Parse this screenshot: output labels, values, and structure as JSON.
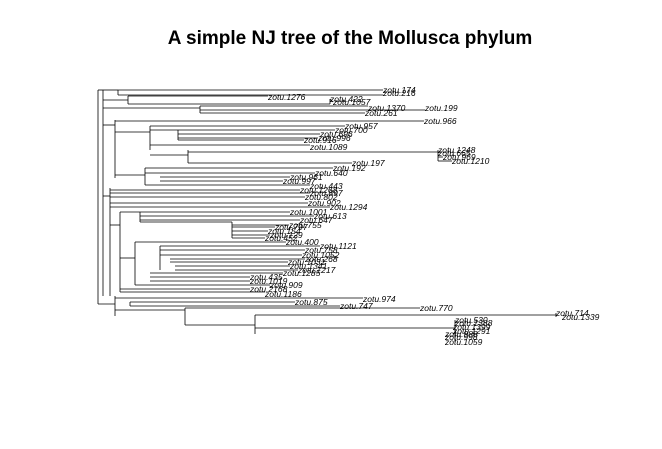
{
  "title": "A simple NJ tree of the Mollusca phylum",
  "tips": [
    "zotu.174",
    "zotu.216",
    "zotu.1276",
    "zotu.422",
    "zotu.1057",
    "zotu.1370",
    "zotu.199",
    "zotu.261",
    "zotu.966",
    "zotu.957",
    "zotu.700",
    "zotu.696",
    "zotu.996",
    "zotu.916",
    "zotu.1089",
    "zotu.1248",
    "zotu.665",
    "zotu.969",
    "zotu.1210",
    "zotu.197",
    "zotu.192",
    "zotu.640",
    "zotu.961",
    "zotu.997",
    "zotu.443",
    "zotu.1268",
    "zotu.897",
    "zotu.802",
    "zotu.902",
    "zotu.1294",
    "zotu.1001",
    "zotu.613",
    "zotu.647",
    "zotu.755",
    "zotu.797",
    "zotu.154",
    "zotu.129",
    "zotu.452",
    "zotu.400",
    "zotu.1121",
    "zotu.758",
    "zotu.1052",
    "zotu.268",
    "zotu.1031",
    "zotu.1341",
    "zotu.1217",
    "zotu.1285",
    "zotu.435",
    "zotu.1019",
    "zotu.909",
    "zotu.2168",
    "zotu.1186",
    "zotu.974",
    "zotu.875",
    "zotu.747",
    "zotu.770",
    "zotu.714",
    "zotu.1339",
    "zotu.530",
    "zotu.1388",
    "zotu.1399",
    "zotu.1291",
    "zotu.988",
    "zotu.998",
    "zotu.1059"
  ]
}
